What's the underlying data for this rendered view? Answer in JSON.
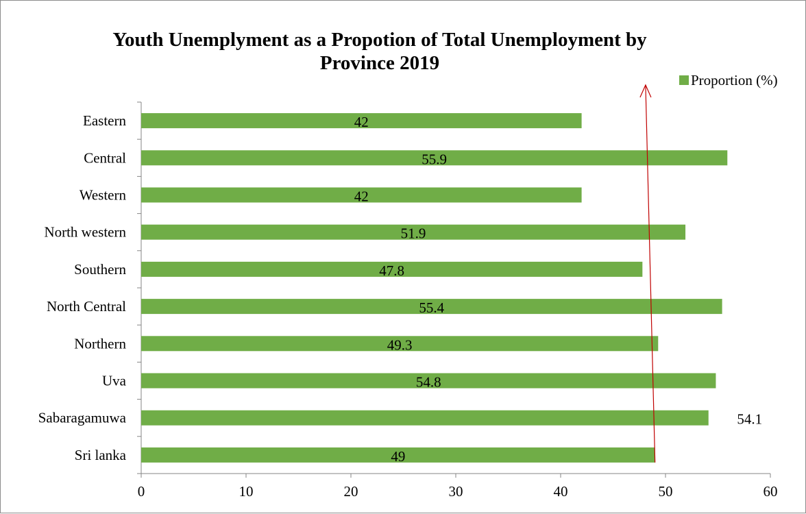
{
  "chart_data": {
    "type": "bar",
    "orientation": "horizontal",
    "title": "Youth Unemplyment as a Propotion of Total Unemployment by Province 2019",
    "categories": [
      "Eastern",
      "Central",
      "Western",
      "North western",
      "Southern",
      "North Central",
      "Northern",
      "Uva",
      "Sabaragamuwa",
      "Sri lanka"
    ],
    "series": [
      {
        "name": "Proportion (%)",
        "color": "#70ad47",
        "values": [
          42,
          55.9,
          42,
          51.9,
          47.8,
          55.4,
          49.3,
          54.8,
          54.1,
          49
        ],
        "value_labels": [
          "42",
          "55.9",
          "42",
          "51.9",
          "47.8",
          "55.4",
          "49.3",
          "54.8",
          "54.1",
          "49"
        ]
      }
    ],
    "xlim": [
      0,
      60
    ],
    "x_ticks": [
      0,
      10,
      20,
      30,
      40,
      50,
      60
    ],
    "x_tick_labels": [
      "0",
      "10",
      "20",
      "30",
      "40",
      "50",
      "60"
    ],
    "grid": false,
    "legend_position": "top-right",
    "annotation": {
      "type": "arrow",
      "color": "#c00000",
      "from": {
        "x": 49,
        "category": "Sri lanka"
      },
      "to": {
        "x": 48.1,
        "category": "above Eastern"
      }
    }
  }
}
